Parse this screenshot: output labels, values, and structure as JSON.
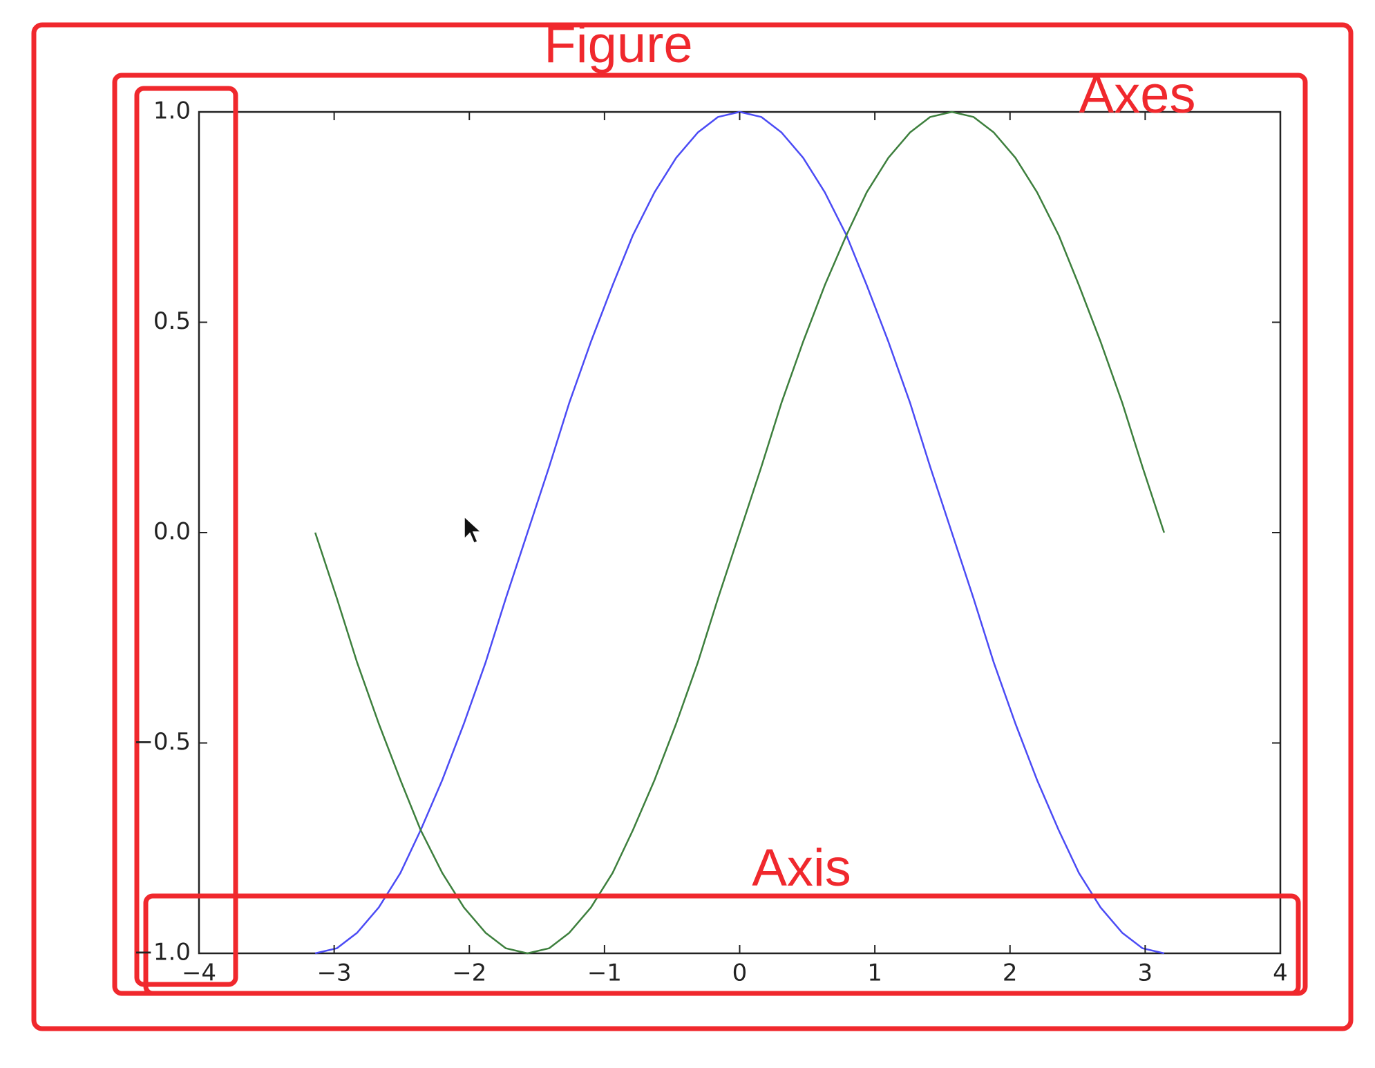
{
  "chart_data": {
    "type": "line",
    "annotations": [
      "Figure",
      "Axes",
      "Axis"
    ],
    "x": [
      -3.14,
      -2.98,
      -2.83,
      -2.67,
      -2.51,
      -2.36,
      -2.2,
      -2.04,
      -1.88,
      -1.73,
      -1.57,
      -1.41,
      -1.26,
      -1.1,
      -0.94,
      -0.79,
      -0.63,
      -0.47,
      -0.31,
      -0.16,
      0,
      0.16,
      0.31,
      0.47,
      0.63,
      0.79,
      0.94,
      1.1,
      1.26,
      1.41,
      1.57,
      1.73,
      1.88,
      2.04,
      2.2,
      2.36,
      2.51,
      2.67,
      2.83,
      2.98,
      3.14
    ],
    "series": [
      {
        "color": "#4b4bf5",
        "values": [
          -1,
          -0.988,
          -0.951,
          -0.891,
          -0.809,
          -0.707,
          -0.588,
          -0.454,
          -0.309,
          -0.156,
          0,
          0.156,
          0.309,
          0.454,
          0.588,
          0.707,
          0.809,
          0.891,
          0.951,
          0.988,
          1,
          0.988,
          0.951,
          0.891,
          0.809,
          0.707,
          0.588,
          0.454,
          0.309,
          0.156,
          0,
          -0.156,
          -0.309,
          -0.454,
          -0.588,
          -0.707,
          -0.809,
          -0.891,
          -0.951,
          -0.988,
          -1
        ]
      },
      {
        "color": "#3d7f3d",
        "values": [
          0,
          -0.156,
          -0.309,
          -0.454,
          -0.588,
          -0.707,
          -0.809,
          -0.891,
          -0.951,
          -0.988,
          -1,
          -0.988,
          -0.951,
          -0.891,
          -0.809,
          -0.707,
          -0.588,
          -0.454,
          -0.309,
          -0.156,
          0,
          0.156,
          0.309,
          0.454,
          0.588,
          0.707,
          0.809,
          0.891,
          0.951,
          0.988,
          1,
          0.988,
          0.951,
          0.891,
          0.809,
          0.707,
          0.588,
          0.454,
          0.309,
          0.156,
          0
        ]
      }
    ],
    "xlim": [
      -4,
      4
    ],
    "xticks": [
      {
        "value": -4,
        "label": "−4"
      },
      {
        "value": -3,
        "label": "−3"
      },
      {
        "value": -2,
        "label": "−2"
      },
      {
        "value": -1,
        "label": "−1"
      },
      0,
      1,
      2,
      3,
      4
    ],
    "ylim": [
      -1,
      1
    ],
    "yticks": [
      {
        "value": -1,
        "label": "−1.0"
      },
      {
        "value": -0.5,
        "label": "−0.5"
      },
      {
        "value": 0,
        "label": "0.0"
      },
      {
        "value": 0.5,
        "label": "0.5"
      },
      {
        "value": 1,
        "label": "1.0"
      }
    ],
    "grid": false
  }
}
